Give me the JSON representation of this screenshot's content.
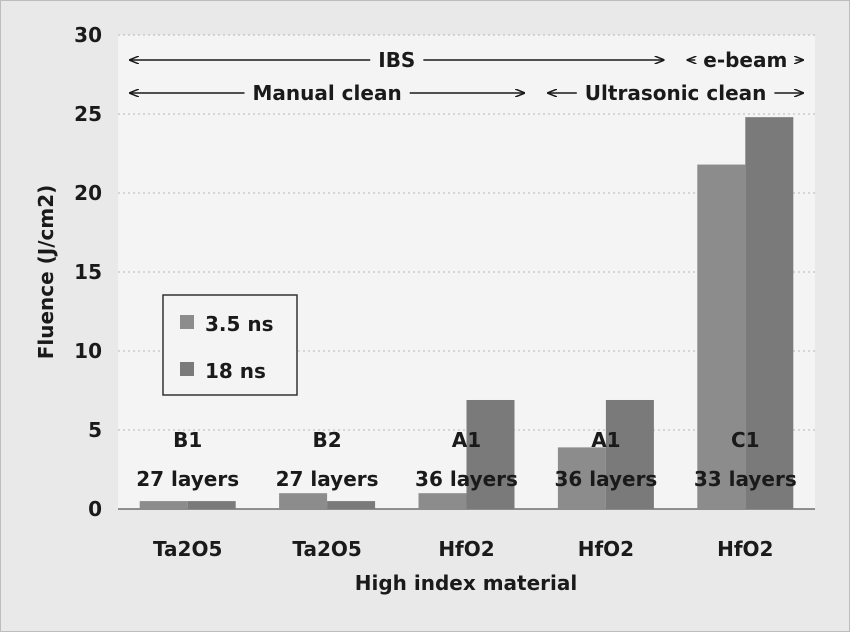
{
  "chart_data": {
    "type": "bar",
    "xlabel": "High index material",
    "ylabel": "Fluence (J/cm2)",
    "ylim": [
      0,
      30
    ],
    "yticks": [
      0,
      5,
      10,
      15,
      20,
      25,
      30
    ],
    "grid": true,
    "legend_position": "middle-left",
    "categories": [
      "Ta2O5",
      "Ta2O5",
      "HfO2",
      "HfO2",
      "HfO2"
    ],
    "bar_labels": [
      {
        "sample": "B1",
        "layers": "27 layers"
      },
      {
        "sample": "B2",
        "layers": "27 layers"
      },
      {
        "sample": "A1",
        "layers": "36 layers"
      },
      {
        "sample": "A1",
        "layers": "36 layers"
      },
      {
        "sample": "C1",
        "layers": "33 layers"
      }
    ],
    "series": [
      {
        "name": "3.5 ns",
        "values": [
          0.5,
          1.0,
          1.0,
          3.9,
          21.8
        ],
        "color": "#8c8c8c"
      },
      {
        "name": "18 ns",
        "values": [
          0.5,
          0.5,
          6.9,
          6.9,
          24.8
        ],
        "color": "#7a7a7a"
      }
    ],
    "annotations": [
      {
        "text": "IBS",
        "from_category": 0,
        "to_category": 3
      },
      {
        "text": "e-beam",
        "from_category": 4,
        "to_category": 4
      },
      {
        "text": "Manual clean",
        "from_category": 0,
        "to_category": 2
      },
      {
        "text": "Ultrasonic clean",
        "from_category": 3,
        "to_category": 4
      }
    ]
  }
}
